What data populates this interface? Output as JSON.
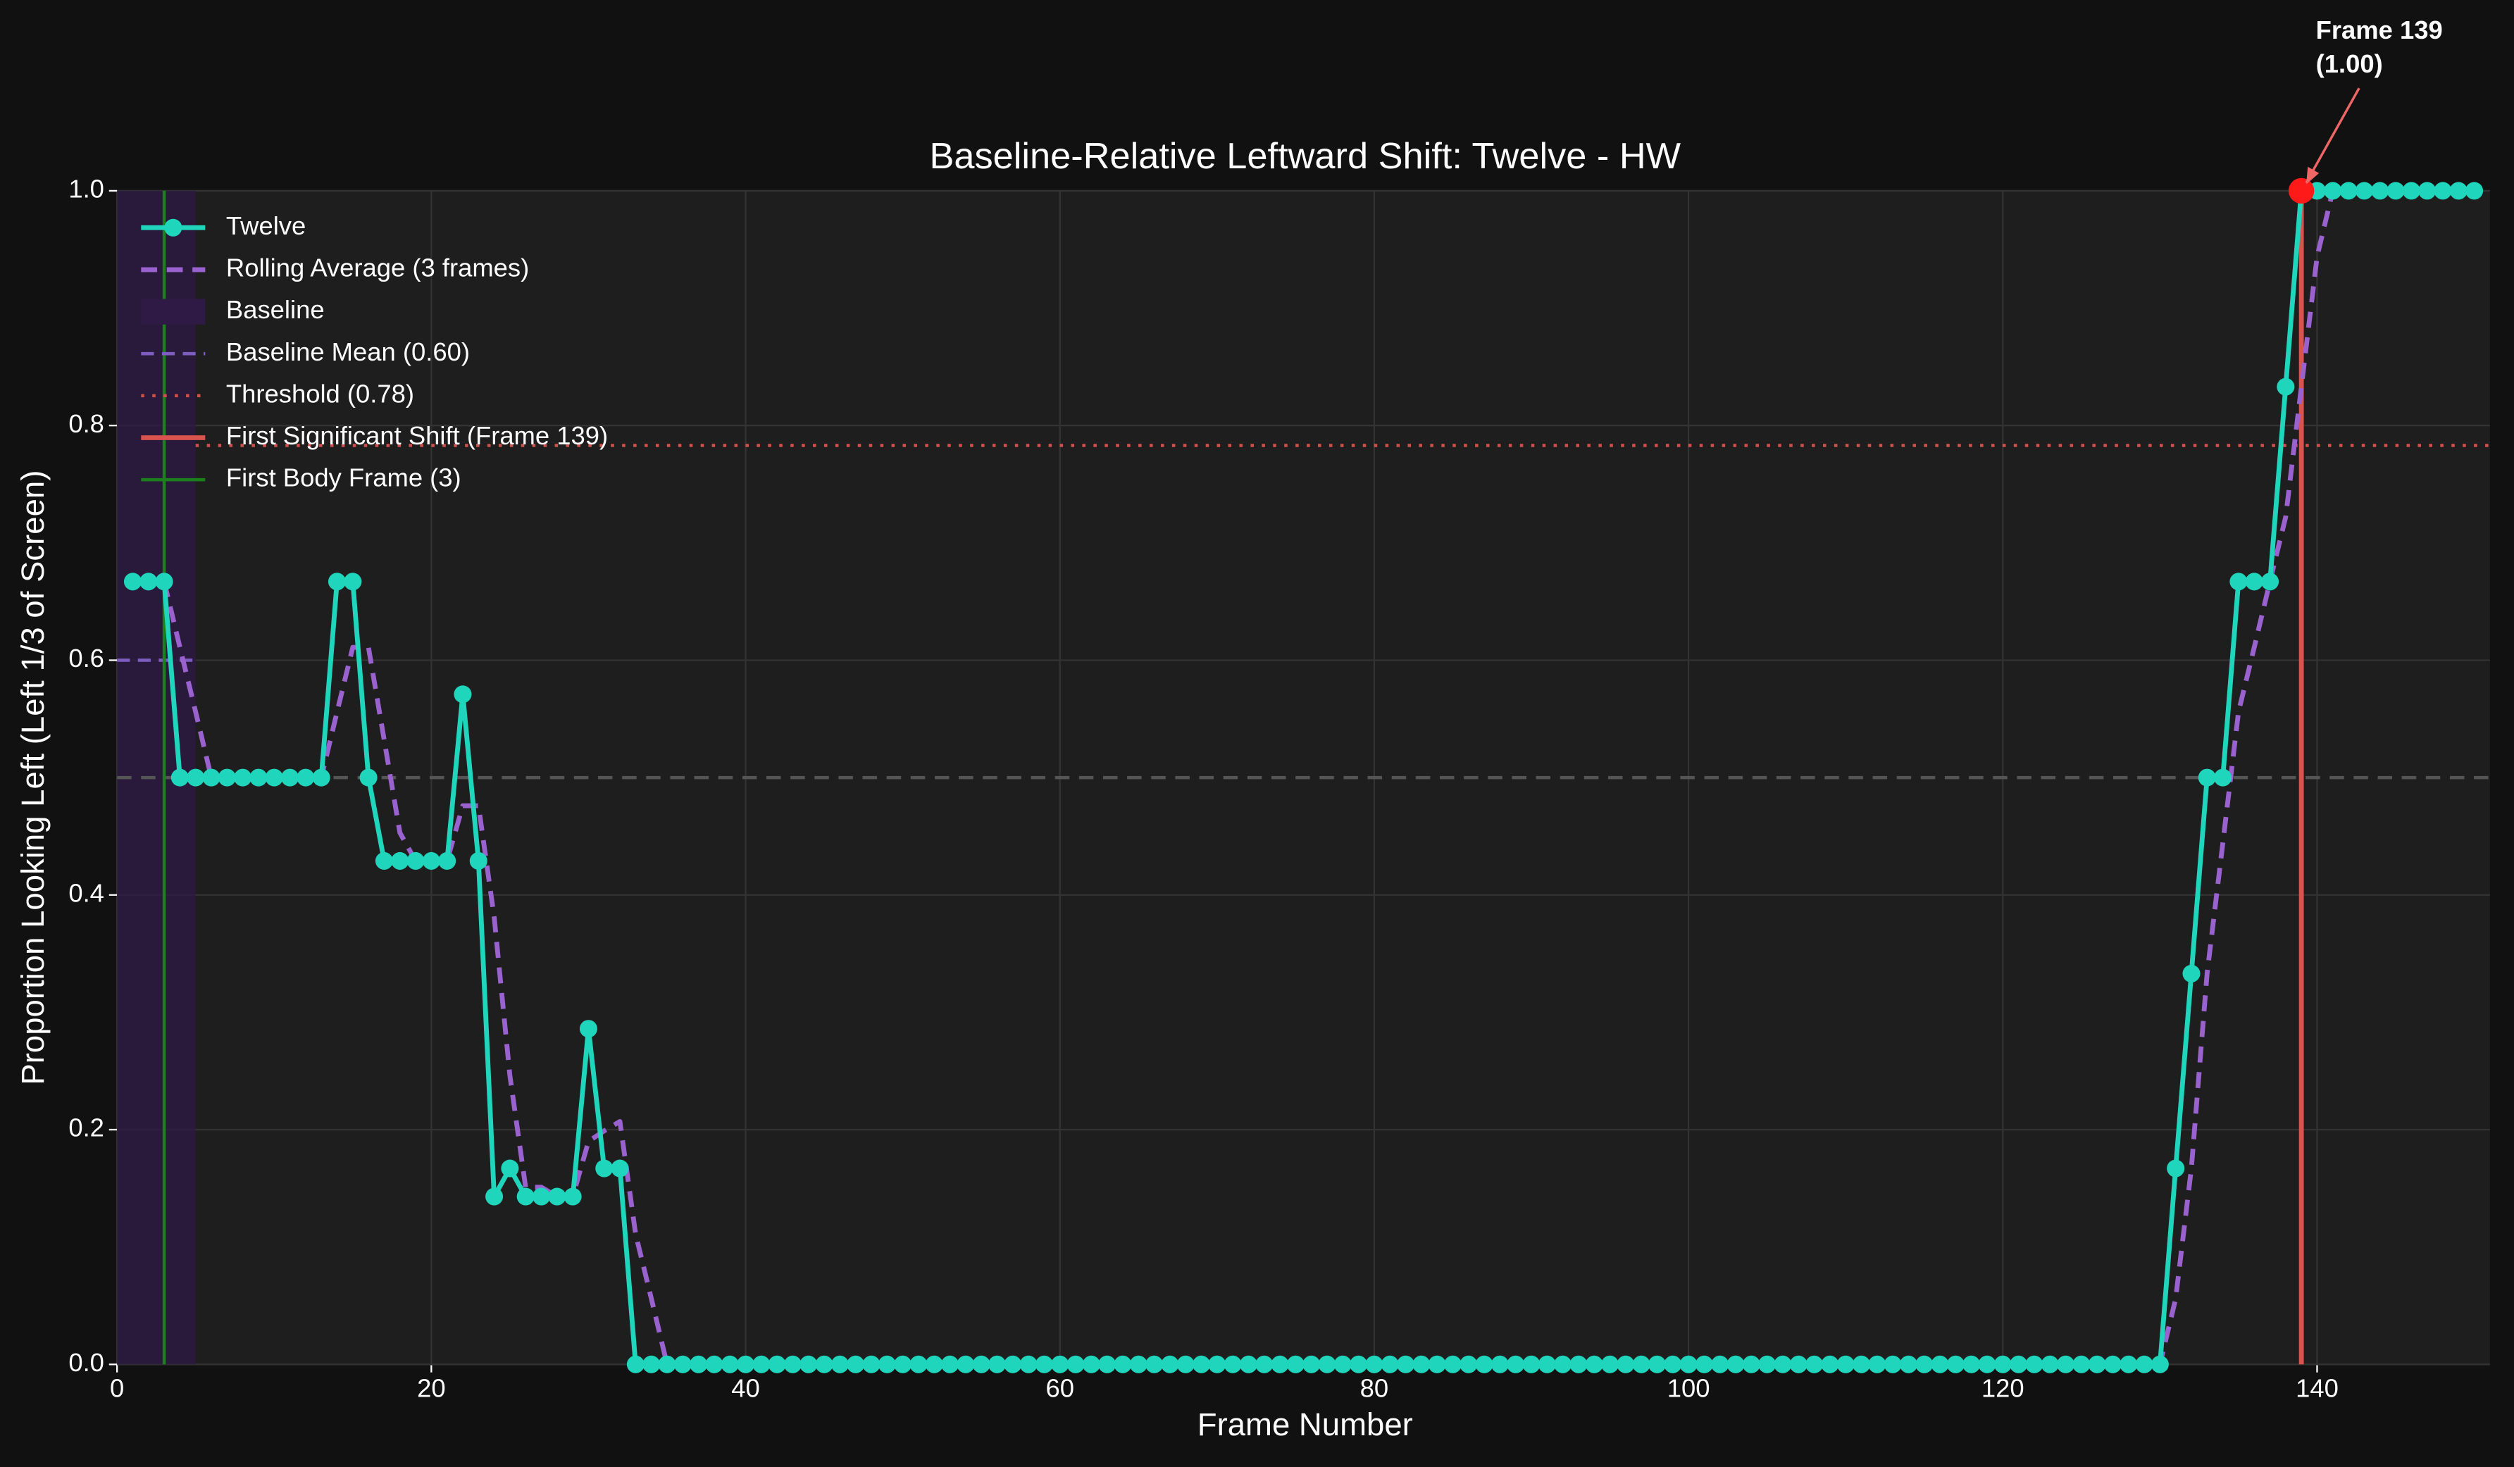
{
  "chart_data": {
    "type": "line",
    "title": "Baseline-Relative Leftward Shift: Twelve - HW",
    "xlabel": "Frame Number",
    "ylabel": "Proportion Looking Left (Left 1/3 of Screen)",
    "xlim": [
      0,
      151
    ],
    "ylim": [
      0,
      1
    ],
    "xticks": [
      0,
      20,
      40,
      60,
      80,
      100,
      120,
      140
    ],
    "yticks": [
      {
        "value": 0,
        "label": "0.0"
      },
      {
        "value": 0.2,
        "label": "0.2"
      },
      {
        "value": 0.4,
        "label": "0.4"
      },
      {
        "value": 0.6,
        "label": "0.6"
      },
      {
        "value": 0.8,
        "label": "0.8"
      },
      {
        "value": 1,
        "label": "1.0"
      }
    ],
    "grid": true,
    "legend": "upper left",
    "x": [
      1,
      2,
      3,
      4,
      5,
      6,
      7,
      8,
      9,
      10,
      11,
      12,
      13,
      14,
      15,
      16,
      17,
      18,
      19,
      20,
      21,
      22,
      23,
      24,
      25,
      26,
      27,
      28,
      29,
      30,
      31,
      32,
      33,
      34,
      35,
      36,
      37,
      38,
      39,
      40,
      41,
      42,
      43,
      44,
      45,
      46,
      47,
      48,
      49,
      50,
      51,
      52,
      53,
      54,
      55,
      56,
      57,
      58,
      59,
      60,
      61,
      62,
      63,
      64,
      65,
      66,
      67,
      68,
      69,
      70,
      71,
      72,
      73,
      74,
      75,
      76,
      77,
      78,
      79,
      80,
      81,
      82,
      83,
      84,
      85,
      86,
      87,
      88,
      89,
      90,
      91,
      92,
      93,
      94,
      95,
      96,
      97,
      98,
      99,
      100,
      101,
      102,
      103,
      104,
      105,
      106,
      107,
      108,
      109,
      110,
      111,
      112,
      113,
      114,
      115,
      116,
      117,
      118,
      119,
      120,
      121,
      122,
      123,
      124,
      125,
      126,
      127,
      128,
      129,
      130,
      131,
      132,
      133,
      134,
      135,
      136,
      137,
      138,
      139,
      140,
      141,
      142,
      143,
      144,
      145,
      146,
      147,
      148,
      149,
      150
    ],
    "series": [
      {
        "name": "Twelve",
        "color": "#1fd6bd",
        "linestyle": "solid",
        "marker": true,
        "values": [
          0.667,
          0.667,
          0.667,
          0.5,
          0.5,
          0.5,
          0.5,
          0.5,
          0.5,
          0.5,
          0.5,
          0.5,
          0.5,
          0.667,
          0.667,
          0.5,
          0.429,
          0.429,
          0.429,
          0.429,
          0.429,
          0.571,
          0.429,
          0.143,
          0.167,
          0.143,
          0.143,
          0.143,
          0.143,
          0.286,
          0.167,
          0.167,
          0,
          0,
          0,
          0,
          0,
          0,
          0,
          0,
          0,
          0,
          0,
          0,
          0,
          0,
          0,
          0,
          0,
          0,
          0,
          0,
          0,
          0,
          0,
          0,
          0,
          0,
          0,
          0,
          0,
          0,
          0,
          0,
          0,
          0,
          0,
          0,
          0,
          0,
          0,
          0,
          0,
          0,
          0,
          0,
          0,
          0,
          0,
          0,
          0,
          0,
          0,
          0,
          0,
          0,
          0,
          0,
          0,
          0,
          0,
          0,
          0,
          0,
          0,
          0,
          0,
          0,
          0,
          0,
          0,
          0,
          0,
          0,
          0,
          0,
          0,
          0,
          0,
          0,
          0,
          0,
          0,
          0,
          0,
          0,
          0,
          0,
          0,
          0,
          0,
          0,
          0,
          0,
          0,
          0,
          0,
          0,
          0,
          0,
          0.167,
          0.333,
          0.5,
          0.5,
          0.667,
          0.667,
          0.667,
          0.833,
          1,
          1,
          1,
          1,
          1,
          1,
          1,
          1,
          1,
          1,
          1,
          1
        ]
      },
      {
        "name": "Rolling Average (3 frames)",
        "color": "#9a62cf",
        "linestyle": "dashed",
        "marker": false,
        "values": [
          null,
          null,
          0.667,
          0.611,
          0.556,
          0.5,
          0.5,
          0.5,
          0.5,
          0.5,
          0.5,
          0.5,
          0.5,
          0.556,
          0.611,
          0.611,
          0.532,
          0.453,
          0.429,
          0.429,
          0.429,
          0.476,
          0.476,
          0.381,
          0.246,
          0.151,
          0.151,
          0.143,
          0.143,
          0.19,
          0.199,
          0.207,
          0.111,
          0.056,
          0,
          0,
          0,
          0,
          0,
          0,
          0,
          0,
          0,
          0,
          0,
          0,
          0,
          0,
          0,
          0,
          0,
          0,
          0,
          0,
          0,
          0,
          0,
          0,
          0,
          0,
          0,
          0,
          0,
          0,
          0,
          0,
          0,
          0,
          0,
          0,
          0,
          0,
          0,
          0,
          0,
          0,
          0,
          0,
          0,
          0,
          0,
          0,
          0,
          0,
          0,
          0,
          0,
          0,
          0,
          0,
          0,
          0,
          0,
          0,
          0,
          0,
          0,
          0,
          0,
          0,
          0,
          0,
          0,
          0,
          0,
          0,
          0,
          0,
          0,
          0,
          0,
          0,
          0,
          0,
          0,
          0,
          0,
          0,
          0,
          0,
          0,
          0,
          0,
          0,
          0,
          0,
          0,
          0,
          0,
          0,
          0.056,
          0.167,
          0.333,
          0.444,
          0.556,
          0.611,
          0.667,
          0.722,
          0.833,
          0.944,
          1,
          1,
          1,
          1,
          1,
          1,
          1,
          1,
          1,
          1
        ]
      }
    ],
    "baseline": {
      "name": "Baseline",
      "span": [
        0,
        5
      ],
      "color": "#2e1a45"
    },
    "baseline_mean": {
      "name": "Baseline Mean (0.60)",
      "value": 0.6,
      "color": "#7d5dbf"
    },
    "threshold": {
      "name": "Threshold (0.78)",
      "value": 0.783,
      "color": "#d0504c"
    },
    "reference_y": {
      "value": 0.5,
      "color": "#555555"
    },
    "first_shift": {
      "name": "First Significant Shift (Frame 139)",
      "x": 139,
      "color": "#d9534f"
    },
    "first_body": {
      "name": "First Body Frame (3)",
      "x": 3,
      "color": "#1b7f1b"
    },
    "annotation": {
      "lines": [
        "Frame 139",
        "(1.00)"
      ],
      "x": 139,
      "y": 1,
      "color": "#ff1a1a"
    }
  }
}
